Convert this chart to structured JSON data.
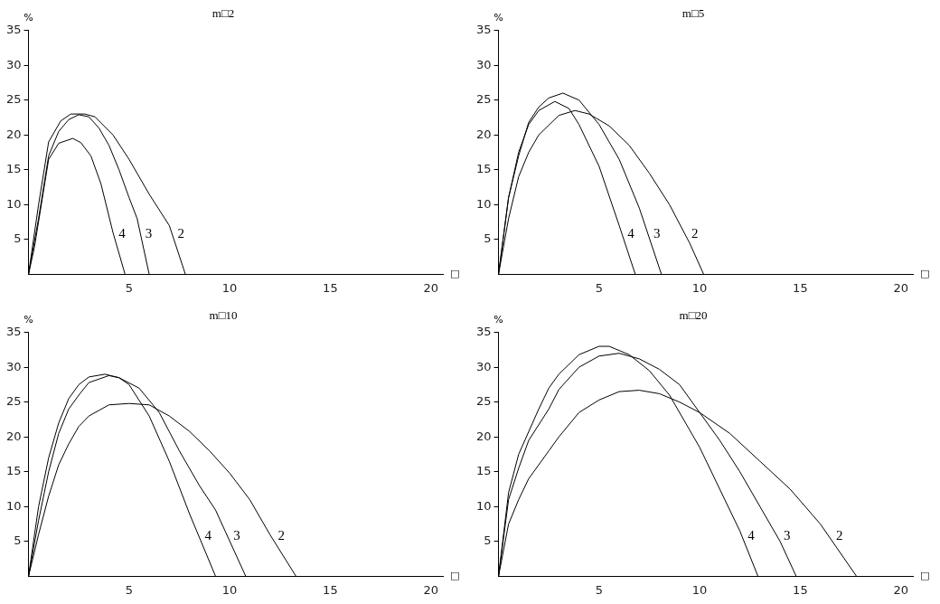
{
  "chart_data": [
    {
      "type": "line",
      "title": "m□2",
      "xlabel": "□",
      "ylabel": "%",
      "xlim": [
        0,
        20.6
      ],
      "ylim": [
        0,
        35
      ],
      "xticks": [
        5,
        10,
        15,
        20
      ],
      "yticks": [
        5,
        10,
        15,
        20,
        25,
        30,
        35
      ],
      "grid": false,
      "legend": false,
      "marker": "none",
      "line_style": "solid",
      "series": [
        {
          "name": "4",
          "color": "#000000",
          "x": [
            0,
            0.3,
            1,
            1.5,
            2.2,
            2.6,
            3.1,
            3.6,
            4.2,
            4.8
          ],
          "values": [
            0,
            4,
            16.5,
            18.8,
            19.5,
            18.9,
            17,
            13,
            6,
            0
          ]
        },
        {
          "name": "3",
          "color": "#000000",
          "x": [
            0,
            0.5,
            1,
            1.5,
            2,
            2.5,
            3,
            3.5,
            4,
            4.5,
            5,
            5.4,
            6
          ],
          "values": [
            0,
            8,
            17,
            20.5,
            22.2,
            22.9,
            22.6,
            21,
            18.5,
            15,
            11,
            8,
            0
          ]
        },
        {
          "name": "2",
          "color": "#000000",
          "x": [
            0,
            0.5,
            1,
            1.6,
            2.1,
            2.8,
            3.3,
            4.2,
            5,
            6,
            7,
            7.8
          ],
          "values": [
            0,
            10,
            19,
            22,
            23,
            23,
            22.6,
            20,
            16.5,
            11.5,
            7,
            0
          ]
        }
      ]
    },
    {
      "type": "line",
      "title": "m□5",
      "xlabel": "□",
      "ylabel": "%",
      "xlim": [
        0,
        20.6
      ],
      "ylim": [
        0,
        35
      ],
      "xticks": [
        5,
        10,
        15,
        20
      ],
      "yticks": [
        5,
        10,
        15,
        20,
        25,
        30,
        35
      ],
      "grid": false,
      "legend": false,
      "marker": "none",
      "line_style": "solid",
      "series": [
        {
          "name": "4",
          "color": "#000000",
          "x": [
            0,
            0.5,
            1,
            1.5,
            2,
            2.8,
            3.5,
            4,
            5,
            6,
            6.8
          ],
          "values": [
            0,
            11,
            17.5,
            21.5,
            23.5,
            24.8,
            23.8,
            21.5,
            15.5,
            7,
            0
          ]
        },
        {
          "name": "3",
          "color": "#000000",
          "x": [
            0,
            0.5,
            1,
            1.5,
            2,
            2.5,
            3.2,
            4,
            5,
            6,
            7,
            8.1
          ],
          "values": [
            0,
            11,
            17,
            21.8,
            24,
            25.3,
            26,
            25,
            21.5,
            16.5,
            9.5,
            0
          ]
        },
        {
          "name": "2",
          "color": "#000000",
          "x": [
            0,
            0.5,
            1,
            1.5,
            2,
            3,
            3.8,
            4.5,
            5.5,
            6.5,
            7.5,
            8.5,
            9.5,
            10.2
          ],
          "values": [
            0,
            8,
            14,
            17.5,
            20,
            22.8,
            23.5,
            23,
            21.3,
            18.5,
            14.5,
            10,
            4.5,
            0
          ]
        }
      ]
    },
    {
      "type": "line",
      "title": "m□10",
      "xlabel": "□",
      "ylabel": "%",
      "xlim": [
        0,
        20.6
      ],
      "ylim": [
        0,
        35
      ],
      "xticks": [
        5,
        10,
        15,
        20
      ],
      "yticks": [
        5,
        10,
        15,
        20,
        25,
        30,
        35
      ],
      "grid": false,
      "legend": false,
      "marker": "none",
      "line_style": "solid",
      "series": [
        {
          "name": "4",
          "color": "#000000",
          "x": [
            0,
            0.5,
            1,
            1.5,
            2,
            2.5,
            3,
            3.8,
            4.5,
            5,
            6,
            7,
            8,
            9.3
          ],
          "values": [
            0,
            10,
            17,
            22,
            25.5,
            27.5,
            28.6,
            29,
            28.5,
            27.5,
            23,
            16.5,
            9,
            0
          ]
        },
        {
          "name": "3",
          "color": "#000000",
          "x": [
            0,
            0.5,
            1,
            1.5,
            2,
            2.5,
            3,
            4,
            4.5,
            5.5,
            6.5,
            7.5,
            8.5,
            9.3,
            10.8
          ],
          "values": [
            0,
            8,
            15,
            20.5,
            24,
            26,
            27.8,
            28.8,
            28.5,
            27,
            23.5,
            18,
            13,
            9.5,
            0
          ]
        },
        {
          "name": "2",
          "color": "#000000",
          "x": [
            0,
            0.5,
            1,
            1.5,
            2,
            2.5,
            3,
            3.5,
            4,
            5,
            6,
            7,
            8,
            9,
            10,
            11,
            12,
            13.3
          ],
          "values": [
            0,
            6,
            11.5,
            16,
            19,
            21.5,
            23,
            23.8,
            24.6,
            24.8,
            24.6,
            23,
            20.8,
            18,
            14.8,
            11,
            6,
            0
          ]
        }
      ]
    },
    {
      "type": "line",
      "title": "m□20",
      "xlabel": "□",
      "ylabel": "%",
      "xlim": [
        0,
        20.6
      ],
      "ylim": [
        0,
        35
      ],
      "xticks": [
        5,
        10,
        15,
        20
      ],
      "yticks": [
        5,
        10,
        15,
        20,
        25,
        30,
        35
      ],
      "grid": false,
      "legend": false,
      "marker": "none",
      "line_style": "solid",
      "series": [
        {
          "name": "4",
          "color": "#000000",
          "x": [
            0,
            0.5,
            1,
            2,
            2.5,
            3,
            4,
            5,
            5.5,
            6.5,
            7.5,
            8.5,
            9.5,
            10,
            11,
            12,
            12.9
          ],
          "values": [
            0,
            12,
            17.5,
            24,
            27,
            29,
            31.8,
            33,
            33,
            31.8,
            29.5,
            26,
            21,
            18.5,
            12.5,
            6.5,
            0
          ]
        },
        {
          "name": "3",
          "color": "#000000",
          "x": [
            0,
            0.5,
            1,
            1.5,
            2.5,
            3,
            4,
            5,
            6,
            7,
            8,
            9,
            10,
            11,
            12,
            13,
            14,
            14.8
          ],
          "values": [
            0,
            11,
            15.5,
            19.5,
            24,
            26.8,
            30,
            31.6,
            32,
            31.2,
            29.7,
            27.5,
            23.5,
            19.5,
            15,
            10,
            5,
            0
          ]
        },
        {
          "name": "2",
          "color": "#000000",
          "x": [
            0,
            0.5,
            1,
            1.5,
            2.5,
            3,
            4,
            5,
            6,
            7,
            8,
            9,
            10,
            11.5,
            13,
            14.5,
            16,
            17.8
          ],
          "values": [
            0,
            7.5,
            11,
            14,
            18,
            20,
            23.5,
            25.3,
            26.5,
            26.7,
            26.2,
            25,
            23.5,
            20.5,
            16.5,
            12.5,
            7.5,
            0
          ]
        }
      ]
    }
  ]
}
